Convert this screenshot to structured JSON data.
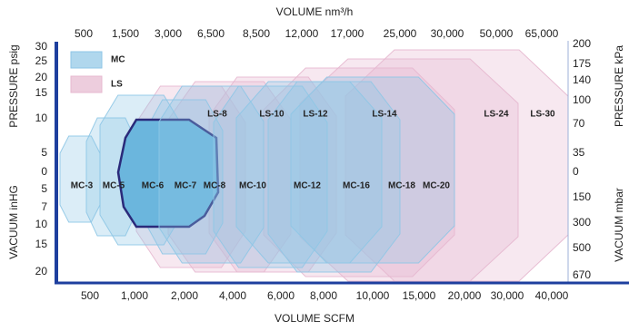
{
  "chart_data": {
    "type": "range-map",
    "x_top_title": "VOLUME nm³/h",
    "x_top_ticks": [
      "500",
      "1,500",
      "3,000",
      "6,500",
      "8,500",
      "12,000",
      "17,000",
      "25,000",
      "30,000",
      "50,000",
      "65,000"
    ],
    "x_bottom_title": "VOLUME SCFM",
    "x_bottom_ticks": [
      "500",
      "1,000",
      "2,000",
      "4,000",
      "6,000",
      "8,000",
      "10,000",
      "15,000",
      "20,000",
      "30,000",
      "40,000"
    ],
    "y_left_pressure_title": "PRESSURE psig",
    "y_left_pressure_ticks": [
      "30",
      "25",
      "20",
      "15",
      "10",
      "5",
      "0"
    ],
    "y_left_vacuum_title": "VACUUM inHG",
    "y_left_vacuum_ticks": [
      "5",
      "7",
      "10",
      "15",
      "20"
    ],
    "y_right_pressure_title": "PRESSURE kPa",
    "y_right_pressure_ticks": [
      "200",
      "175",
      "140",
      "100",
      "70",
      "35",
      "0"
    ],
    "y_right_vacuum_title": "VACUUM mbar",
    "y_right_vacuum_ticks": [
      "150",
      "300",
      "500",
      "670"
    ],
    "series": [
      {
        "name": "MC",
        "color": "#8ec6e6",
        "label_color": "#7d86b8",
        "models": [
          "MC-3",
          "MC-5",
          "MC-6",
          "MC-7",
          "MC-8",
          "MC-10",
          "MC-12",
          "MC-16",
          "MC-18",
          "MC-20"
        ]
      },
      {
        "name": "LS",
        "color": "#e6b8cf",
        "label_color": "#c0608a",
        "models": [
          "LS-8",
          "LS-10",
          "LS-12",
          "LS-14",
          "LS-24",
          "LS-30"
        ]
      }
    ]
  }
}
